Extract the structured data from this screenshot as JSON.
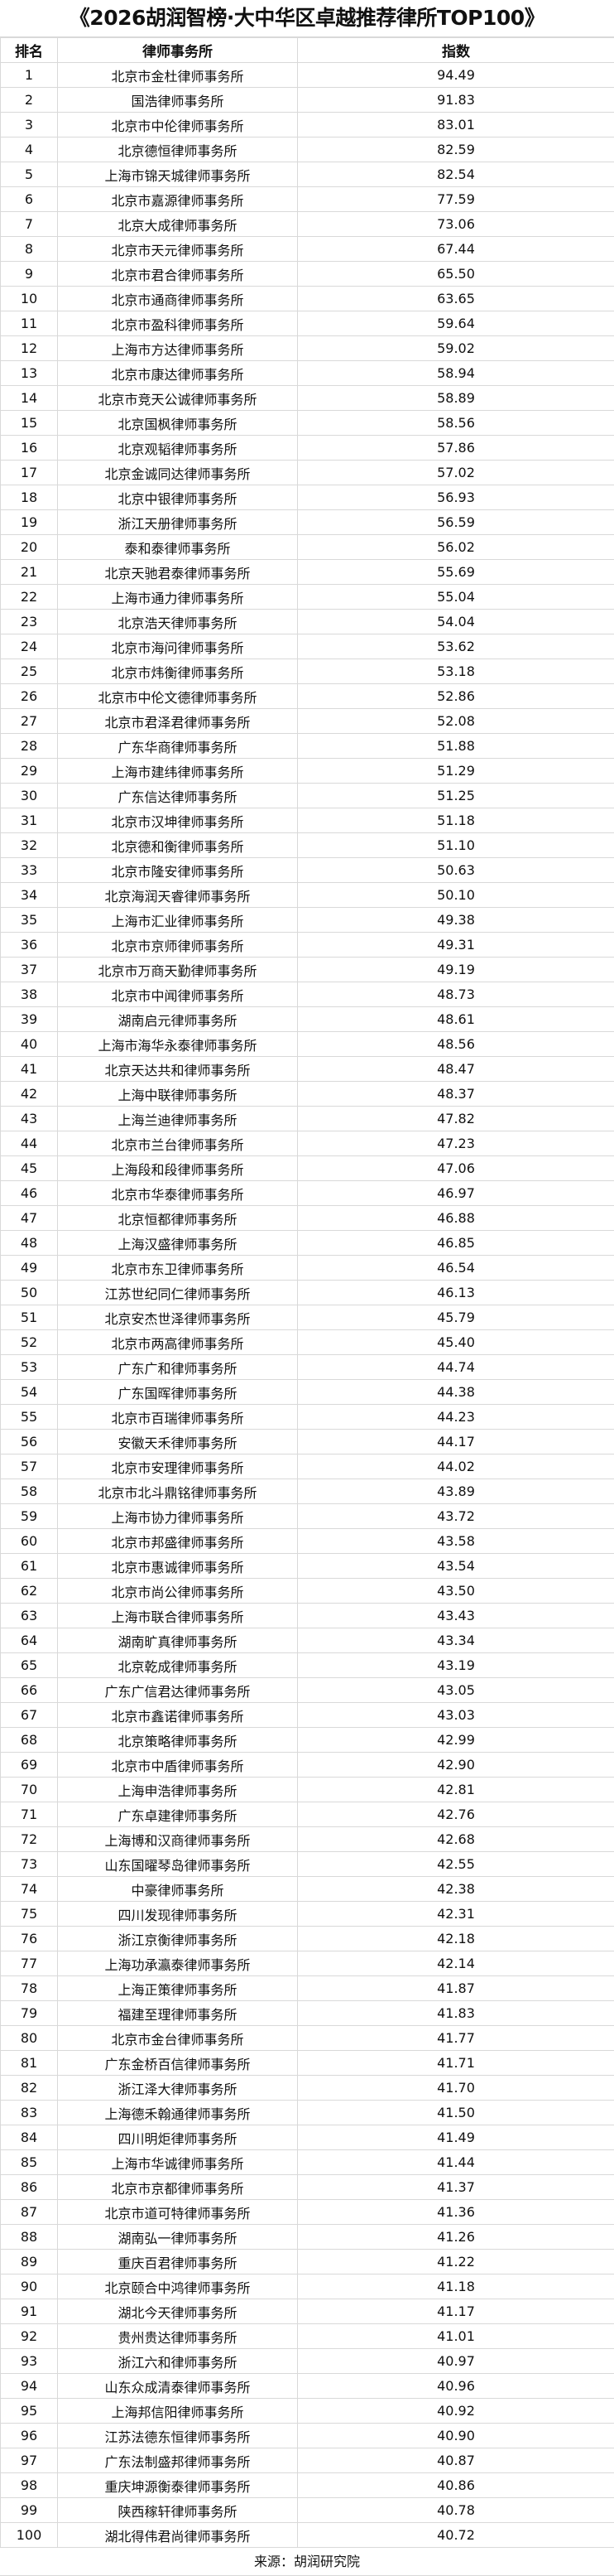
{
  "title": "《2026胡润智榜·大中华区卓越推荐律所TOP100》",
  "headers": {
    "rank": "排名",
    "firm": "律师事务所",
    "score": "指数"
  },
  "rows": [
    [
      "1",
      "北京市金杜律师事务所",
      "94.49"
    ],
    [
      "2",
      "国浩律师事务所",
      "91.83"
    ],
    [
      "3",
      "北京市中伦律师事务所",
      "83.01"
    ],
    [
      "4",
      "北京德恒律师事务所",
      "82.59"
    ],
    [
      "5",
      "上海市锦天城律师事务所",
      "82.54"
    ],
    [
      "6",
      "北京市嘉源律师事务所",
      "77.59"
    ],
    [
      "7",
      "北京大成律师事务所",
      "73.06"
    ],
    [
      "8",
      "北京市天元律师事务所",
      "67.44"
    ],
    [
      "9",
      "北京市君合律师事务所",
      "65.50"
    ],
    [
      "10",
      "北京市通商律师事务所",
      "63.65"
    ],
    [
      "11",
      "北京市盈科律师事务所",
      "59.64"
    ],
    [
      "12",
      "上海市方达律师事务所",
      "59.02"
    ],
    [
      "13",
      "北京市康达律师事务所",
      "58.94"
    ],
    [
      "14",
      "北京市竞天公诚律师事务所",
      "58.89"
    ],
    [
      "15",
      "北京国枫律师事务所",
      "58.56"
    ],
    [
      "16",
      "北京观韬律师事务所",
      "57.86"
    ],
    [
      "17",
      "北京金诚同达律师事务所",
      "57.02"
    ],
    [
      "18",
      "北京中银律师事务所",
      "56.93"
    ],
    [
      "19",
      "浙江天册律师事务所",
      "56.59"
    ],
    [
      "20",
      "泰和泰律师事务所",
      "56.02"
    ],
    [
      "21",
      "北京天驰君泰律师事务所",
      "55.69"
    ],
    [
      "22",
      "上海市通力律师事务所",
      "55.04"
    ],
    [
      "23",
      "北京浩天律师事务所",
      "54.04"
    ],
    [
      "24",
      "北京市海问律师事务所",
      "53.62"
    ],
    [
      "25",
      "北京市炜衡律师事务所",
      "53.18"
    ],
    [
      "26",
      "北京市中伦文德律师事务所",
      "52.86"
    ],
    [
      "27",
      "北京市君泽君律师事务所",
      "52.08"
    ],
    [
      "28",
      "广东华商律师事务所",
      "51.88"
    ],
    [
      "29",
      "上海市建纬律师事务所",
      "51.29"
    ],
    [
      "30",
      "广东信达律师事务所",
      "51.25"
    ],
    [
      "31",
      "北京市汉坤律师事务所",
      "51.18"
    ],
    [
      "32",
      "北京德和衡律师事务所",
      "51.10"
    ],
    [
      "33",
      "北京市隆安律师事务所",
      "50.63"
    ],
    [
      "34",
      "北京海润天睿律师事务所",
      "50.10"
    ],
    [
      "35",
      "上海市汇业律师事务所",
      "49.38"
    ],
    [
      "36",
      "北京市京师律师事务所",
      "49.31"
    ],
    [
      "37",
      "北京市万商天勤律师事务所",
      "49.19"
    ],
    [
      "38",
      "北京市中闻律师事务所",
      "48.73"
    ],
    [
      "39",
      "湖南启元律师事务所",
      "48.61"
    ],
    [
      "40",
      "上海市海华永泰律师事务所",
      "48.56"
    ],
    [
      "41",
      "北京天达共和律师事务所",
      "48.47"
    ],
    [
      "42",
      "上海中联律师事务所",
      "48.37"
    ],
    [
      "43",
      "上海兰迪律师事务所",
      "47.82"
    ],
    [
      "44",
      "北京市兰台律师事务所",
      "47.23"
    ],
    [
      "45",
      "上海段和段律师事务所",
      "47.06"
    ],
    [
      "46",
      "北京市华泰律师事务所",
      "46.97"
    ],
    [
      "47",
      "北京恒都律师事务所",
      "46.88"
    ],
    [
      "48",
      "上海汉盛律师事务所",
      "46.85"
    ],
    [
      "49",
      "北京市东卫律师事务所",
      "46.54"
    ],
    [
      "50",
      "江苏世纪同仁律师事务所",
      "46.13"
    ],
    [
      "51",
      "北京安杰世泽律师事务所",
      "45.79"
    ],
    [
      "52",
      "北京市两高律师事务所",
      "45.40"
    ],
    [
      "53",
      "广东广和律师事务所",
      "44.74"
    ],
    [
      "54",
      "广东国晖律师事务所",
      "44.38"
    ],
    [
      "55",
      "北京市百瑞律师事务所",
      "44.23"
    ],
    [
      "56",
      "安徽天禾律师事务所",
      "44.17"
    ],
    [
      "57",
      "北京市安理律师事务所",
      "44.02"
    ],
    [
      "58",
      "北京市北斗鼎铭律师事务所",
      "43.89"
    ],
    [
      "59",
      "上海市协力律师事务所",
      "43.72"
    ],
    [
      "60",
      "北京市邦盛律师事务所",
      "43.58"
    ],
    [
      "61",
      "北京市惠诚律师事务所",
      "43.54"
    ],
    [
      "62",
      "北京市尚公律师事务所",
      "43.50"
    ],
    [
      "63",
      "上海市联合律师事务所",
      "43.43"
    ],
    [
      "64",
      "湖南旷真律师事务所",
      "43.34"
    ],
    [
      "65",
      "北京乾成律师事务所",
      "43.19"
    ],
    [
      "66",
      "广东广信君达律师事务所",
      "43.05"
    ],
    [
      "67",
      "北京市鑫诺律师事务所",
      "43.03"
    ],
    [
      "68",
      "北京策略律师事务所",
      "42.99"
    ],
    [
      "69",
      "北京市中盾律师事务所",
      "42.90"
    ],
    [
      "70",
      "上海申浩律师事务所",
      "42.81"
    ],
    [
      "71",
      "广东卓建律师事务所",
      "42.76"
    ],
    [
      "72",
      "上海博和汉商律师事务所",
      "42.68"
    ],
    [
      "73",
      "山东国曜琴岛律师事务所",
      "42.55"
    ],
    [
      "74",
      "中豪律师事务所",
      "42.38"
    ],
    [
      "75",
      "四川发现律师事务所",
      "42.31"
    ],
    [
      "76",
      "浙江京衡律师事务所",
      "42.18"
    ],
    [
      "77",
      "上海功承瀛泰律师事务所",
      "42.14"
    ],
    [
      "78",
      "上海正策律师事务所",
      "41.87"
    ],
    [
      "79",
      "福建至理律师事务所",
      "41.83"
    ],
    [
      "80",
      "北京市金台律师事务所",
      "41.77"
    ],
    [
      "81",
      "广东金桥百信律师事务所",
      "41.71"
    ],
    [
      "82",
      "浙江泽大律师事务所",
      "41.70"
    ],
    [
      "83",
      "上海德禾翰通律师事务所",
      "41.50"
    ],
    [
      "84",
      "四川明炬律师事务所",
      "41.49"
    ],
    [
      "85",
      "上海市华诚律师事务所",
      "41.44"
    ],
    [
      "86",
      "北京市京都律师事务所",
      "41.37"
    ],
    [
      "87",
      "北京市道可特律师事务所",
      "41.36"
    ],
    [
      "88",
      "湖南弘一律师事务所",
      "41.26"
    ],
    [
      "89",
      "重庆百君律师事务所",
      "41.22"
    ],
    [
      "90",
      "北京颐合中鸿律师事务所",
      "41.18"
    ],
    [
      "91",
      "湖北今天律师事务所",
      "41.17"
    ],
    [
      "92",
      "贵州贵达律师事务所",
      "41.01"
    ],
    [
      "93",
      "浙江六和律师事务所",
      "40.97"
    ],
    [
      "94",
      "山东众成清泰律师事务所",
      "40.96"
    ],
    [
      "95",
      "上海邦信阳律师事务所",
      "40.92"
    ],
    [
      "96",
      "江苏法德东恒律师事务所",
      "40.90"
    ],
    [
      "97",
      "广东法制盛邦律师事务所",
      "40.87"
    ],
    [
      "98",
      "重庆坤源衡泰律师事务所",
      "40.86"
    ],
    [
      "99",
      "陕西稼轩律师事务所",
      "40.78"
    ],
    [
      "100",
      "湖北得伟君尚律师事务所",
      "40.72"
    ]
  ],
  "footer": "来源：胡润研究院"
}
